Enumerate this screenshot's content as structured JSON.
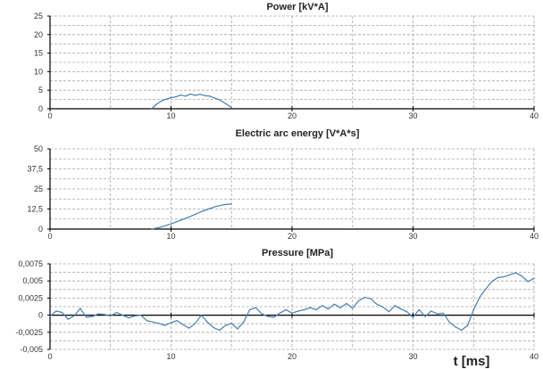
{
  "colors": {
    "series": "#4a7eb5",
    "grid": "#a6a6a6",
    "axis": "#000000"
  },
  "xlabel": "t  [ms]",
  "chart_data": [
    {
      "type": "line",
      "title": "Power [kV*A]",
      "xlim": [
        0,
        40
      ],
      "ylim": [
        0,
        25
      ],
      "x_ticks": [
        0,
        10,
        20,
        30,
        40
      ],
      "x_tick_labels": [
        "0",
        "10",
        "20",
        "30",
        "40"
      ],
      "y_ticks": [
        0,
        5,
        10,
        15,
        20,
        25
      ],
      "y_tick_labels": [
        "0",
        "5",
        "10",
        "15",
        "20",
        "25"
      ],
      "grid": true,
      "series": [
        {
          "x": [
            8.4,
            8.8,
            9.2,
            9.6,
            10.0,
            10.4,
            10.8,
            11.2,
            11.6,
            12.0,
            12.4,
            12.8,
            13.2,
            13.6,
            14.0,
            14.4,
            14.8,
            15.0
          ],
          "y": [
            0,
            1.2,
            2.1,
            2.6,
            3.0,
            3.2,
            3.7,
            3.4,
            4.0,
            3.6,
            3.9,
            3.5,
            3.4,
            2.9,
            2.4,
            1.6,
            0.8,
            0.3
          ]
        }
      ]
    },
    {
      "type": "line",
      "title": "Electric arc energy [V*A*s]",
      "xlim": [
        0,
        40
      ],
      "ylim": [
        0,
        50
      ],
      "x_ticks": [
        0,
        10,
        20,
        30,
        40
      ],
      "x_tick_labels": [
        "0",
        "10",
        "20",
        "30",
        "40"
      ],
      "y_ticks": [
        0,
        12.5,
        25,
        37.5,
        50
      ],
      "y_tick_labels": [
        "0",
        "12,5",
        "25",
        "37,5",
        "50"
      ],
      "grid": true,
      "series": [
        {
          "x": [
            8.4,
            9.0,
            9.6,
            10.2,
            10.8,
            11.4,
            12.0,
            12.6,
            13.2,
            13.8,
            14.4,
            15.0
          ],
          "y": [
            0,
            0.9,
            2.3,
            3.8,
            5.5,
            7.3,
            9.2,
            11.1,
            12.8,
            14.3,
            15.2,
            15.6
          ]
        }
      ]
    },
    {
      "type": "line",
      "title": "Pressure [MPa]",
      "xlim": [
        0,
        40
      ],
      "ylim": [
        -0.005,
        0.0075
      ],
      "x_ticks": [
        0,
        10,
        20,
        30,
        40
      ],
      "x_tick_labels": [
        "0",
        "10",
        "20",
        "30",
        "40"
      ],
      "y_ticks": [
        -0.005,
        -0.0025,
        0,
        0.0025,
        0.005,
        0.0075
      ],
      "y_tick_labels": [
        "-0,005",
        "-0,0025",
        "0",
        "0,0025",
        "0,005",
        "0,0075"
      ],
      "grid": true,
      "series": [
        {
          "x": [
            0,
            0.5,
            1.0,
            1.5,
            2.0,
            2.5,
            3.0,
            3.5,
            4.0,
            4.5,
            5.0,
            5.5,
            6.0,
            6.5,
            7.0,
            7.5,
            8.0,
            8.5,
            9.0,
            9.5,
            10.0,
            10.5,
            11.0,
            11.5,
            12.0,
            12.5,
            13.0,
            13.5,
            14.0,
            14.5,
            15.0,
            15.5,
            16.0,
            16.5,
            17.0,
            17.5,
            18.0,
            18.5,
            19.0,
            19.5,
            20.0,
            20.5,
            21.0,
            21.5,
            22.0,
            22.5,
            23.0,
            23.5,
            24.0,
            24.5,
            25.0,
            25.5,
            26.0,
            26.5,
            27.0,
            27.5,
            28.0,
            28.5,
            29.0,
            29.5,
            30.0,
            30.5,
            31.0,
            31.5,
            32.0,
            32.5,
            33.0,
            33.5,
            34.0,
            34.5,
            35.0,
            35.5,
            36.0,
            36.5,
            37.0,
            37.5,
            38.0,
            38.5,
            39.0,
            39.5,
            40.0
          ],
          "y": [
            -0.0002,
            0.0006,
            0.0004,
            -0.0006,
            -0.0001,
            0.001,
            -0.0003,
            -0.0002,
            0.0002,
            0.0001,
            -0.0001,
            0.0004,
            0.0,
            -0.0004,
            -0.0001,
            0.0,
            -0.0008,
            -0.001,
            -0.0012,
            -0.0015,
            -0.0011,
            -0.0008,
            -0.0014,
            -0.0019,
            -0.0012,
            0.0,
            -0.001,
            -0.0018,
            -0.0022,
            -0.0015,
            -0.0012,
            -0.002,
            -0.001,
            0.0008,
            0.0011,
            0.0002,
            -0.0002,
            -0.0003,
            0.0003,
            0.0008,
            0.0003,
            0.0006,
            0.0008,
            0.0011,
            0.0008,
            0.0014,
            0.0009,
            0.0016,
            0.0011,
            0.0017,
            0.001,
            0.0021,
            0.0026,
            0.0024,
            0.0016,
            0.0012,
            0.0005,
            0.0014,
            0.0009,
            0.0005,
            -0.0003,
            0.0008,
            -0.0002,
            0.0006,
            0.0002,
            0.0003,
            -0.001,
            -0.0017,
            -0.0022,
            -0.0015,
            0.0008,
            0.0026,
            0.0038,
            0.0049,
            0.0055,
            0.0056,
            0.0059,
            0.0062,
            0.0057,
            0.0049,
            0.0054
          ]
        }
      ]
    }
  ]
}
